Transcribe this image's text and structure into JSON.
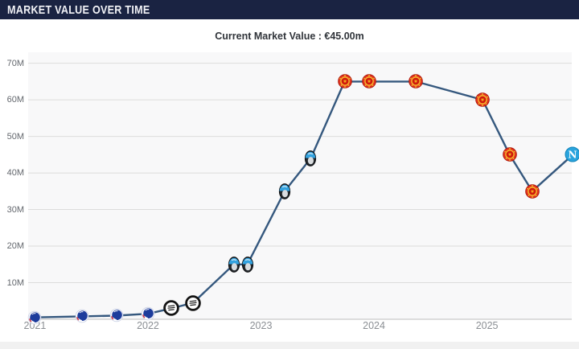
{
  "header": {
    "title": "MARKET VALUE OVER TIME"
  },
  "subtitle": {
    "text": "Current Market Value : €45.00m"
  },
  "chart_data": {
    "type": "line",
    "title": "Market value over time",
    "unit": "€ million",
    "current_value": "€45.00m",
    "line_color": "#35587e",
    "grid": "horizontal",
    "y_ticks": [
      {
        "value": 10,
        "label": "10M"
      },
      {
        "value": 20,
        "label": "20M"
      },
      {
        "value": 30,
        "label": "30M"
      },
      {
        "value": 40,
        "label": "40M"
      },
      {
        "value": 50,
        "label": "50M"
      },
      {
        "value": 60,
        "label": "60M"
      },
      {
        "value": 70,
        "label": "70M"
      }
    ],
    "x_ticks": [
      {
        "value": 2021,
        "label": "2021"
      },
      {
        "value": 2022,
        "label": "2022"
      },
      {
        "value": 2023,
        "label": "2023"
      },
      {
        "value": 2024,
        "label": "2024"
      },
      {
        "value": 2025,
        "label": "2025"
      }
    ],
    "xlim": [
      2020.94,
      2025.75
    ],
    "ylim": [
      0,
      73
    ],
    "points": [
      {
        "x": 2021.0,
        "value": 0.5,
        "club": "copenhagen"
      },
      {
        "x": 2021.42,
        "value": 0.8,
        "club": "copenhagen"
      },
      {
        "x": 2021.72,
        "value": 1.0,
        "club": "copenhagen"
      },
      {
        "x": 2022.0,
        "value": 1.5,
        "club": "copenhagen"
      },
      {
        "x": 2022.21,
        "value": 3.0,
        "club": "sturm"
      },
      {
        "x": 2022.4,
        "value": 4.5,
        "club": "sturm"
      },
      {
        "x": 2022.76,
        "value": 15.0,
        "club": "atalanta"
      },
      {
        "x": 2022.88,
        "value": 15.0,
        "club": "atalanta"
      },
      {
        "x": 2023.21,
        "value": 35.0,
        "club": "atalanta"
      },
      {
        "x": 2023.44,
        "value": 44.0,
        "club": "atalanta"
      },
      {
        "x": 2023.74,
        "value": 65.0,
        "club": "man-united"
      },
      {
        "x": 2023.96,
        "value": 65.0,
        "club": "man-united"
      },
      {
        "x": 2024.37,
        "value": 65.0,
        "club": "man-united"
      },
      {
        "x": 2024.96,
        "value": 60.0,
        "club": "man-united"
      },
      {
        "x": 2025.2,
        "value": 45.0,
        "club": "man-united"
      },
      {
        "x": 2025.4,
        "value": 35.0,
        "club": "man-united"
      },
      {
        "x": 2025.76,
        "value": 45.0,
        "club": "napoli"
      }
    ],
    "clubs": {
      "copenhagen": {
        "name": "fc-copenhagen-crest-icon",
        "primary": "#1d3c9c",
        "size": 17
      },
      "sturm": {
        "name": "sturm-graz-crest-icon",
        "primary": "#141414",
        "size": 20
      },
      "atalanta": {
        "name": "atalanta-crest-icon",
        "primary": "#33a2df",
        "size": 21
      },
      "man-united": {
        "name": "man-united-crest-icon",
        "primary": "#e2331f",
        "size": 19
      },
      "napoli": {
        "name": "napoli-crest-icon",
        "primary": "#2aa4dd",
        "size": 20,
        "monogram": "N"
      }
    }
  }
}
